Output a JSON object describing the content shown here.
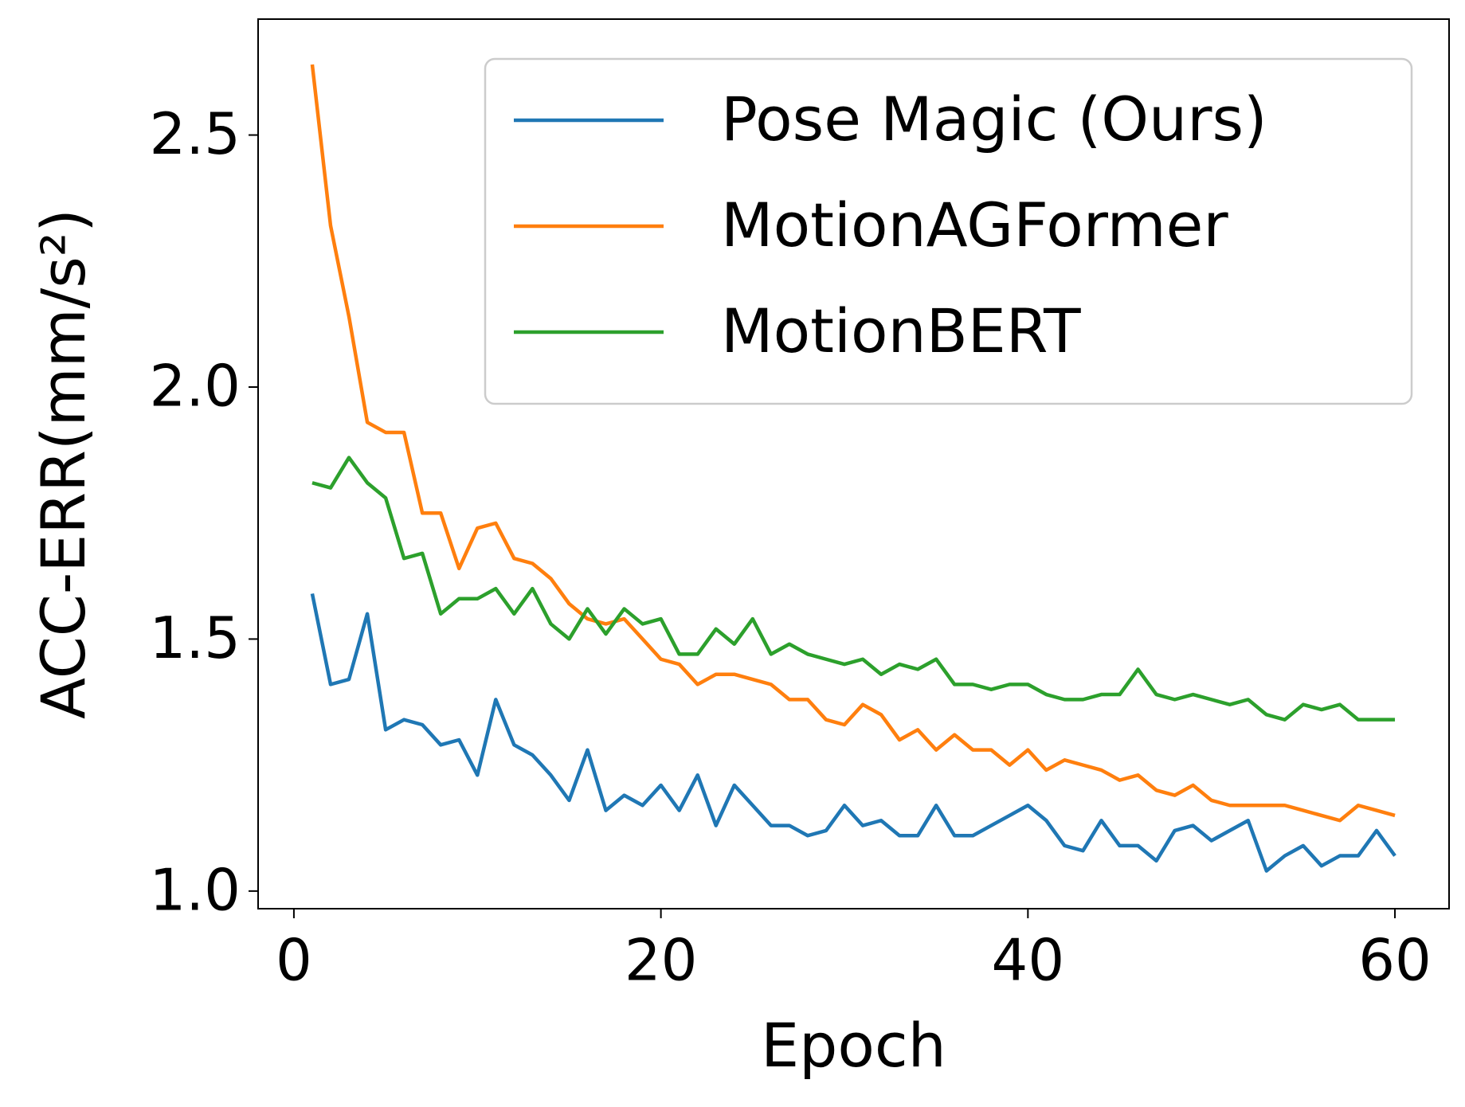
{
  "chart_data": {
    "type": "line",
    "xlabel": "Epoch",
    "ylabel": "ACC-ERR(mm/s²)",
    "x": [
      1,
      2,
      3,
      4,
      5,
      6,
      7,
      8,
      9,
      10,
      11,
      12,
      13,
      14,
      15,
      16,
      17,
      18,
      19,
      20,
      21,
      22,
      23,
      24,
      25,
      26,
      27,
      28,
      29,
      30,
      31,
      32,
      33,
      34,
      35,
      36,
      37,
      38,
      39,
      40,
      41,
      42,
      43,
      44,
      45,
      46,
      47,
      48,
      49,
      50,
      51,
      52,
      53,
      54,
      55,
      56,
      57,
      58,
      59,
      60
    ],
    "series": [
      {
        "name": "Pose Magic (Ours)",
        "color": "#1f77b4",
        "values": [
          1.59,
          1.41,
          1.42,
          1.55,
          1.32,
          1.34,
          1.33,
          1.29,
          1.3,
          1.23,
          1.38,
          1.29,
          1.27,
          1.23,
          1.18,
          1.28,
          1.16,
          1.19,
          1.17,
          1.21,
          1.16,
          1.23,
          1.13,
          1.21,
          1.17,
          1.13,
          1.13,
          1.11,
          1.12,
          1.17,
          1.13,
          1.14,
          1.11,
          1.11,
          1.17,
          1.11,
          1.11,
          1.13,
          1.15,
          1.17,
          1.14,
          1.09,
          1.08,
          1.14,
          1.09,
          1.09,
          1.06,
          1.12,
          1.13,
          1.1,
          1.12,
          1.14,
          1.04,
          1.07,
          1.09,
          1.05,
          1.07,
          1.07,
          1.12,
          1.07
        ]
      },
      {
        "name": "MotionAGFormer",
        "color": "#ff7f0e",
        "values": [
          2.64,
          2.32,
          2.14,
          1.93,
          1.91,
          1.91,
          1.75,
          1.75,
          1.64,
          1.72,
          1.73,
          1.66,
          1.65,
          1.62,
          1.57,
          1.54,
          1.53,
          1.54,
          1.5,
          1.46,
          1.45,
          1.41,
          1.43,
          1.43,
          1.42,
          1.41,
          1.38,
          1.38,
          1.34,
          1.33,
          1.37,
          1.35,
          1.3,
          1.32,
          1.28,
          1.31,
          1.28,
          1.28,
          1.25,
          1.28,
          1.24,
          1.26,
          1.25,
          1.24,
          1.22,
          1.23,
          1.2,
          1.19,
          1.21,
          1.18,
          1.17,
          1.17,
          1.17,
          1.17,
          1.16,
          1.15,
          1.14,
          1.17,
          1.16,
          1.15
        ]
      },
      {
        "name": "MotionBERT",
        "color": "#2ca02c",
        "values": [
          1.81,
          1.8,
          1.86,
          1.81,
          1.78,
          1.66,
          1.67,
          1.55,
          1.58,
          1.58,
          1.6,
          1.55,
          1.6,
          1.53,
          1.5,
          1.56,
          1.51,
          1.56,
          1.53,
          1.54,
          1.47,
          1.47,
          1.52,
          1.49,
          1.54,
          1.47,
          1.49,
          1.47,
          1.46,
          1.45,
          1.46,
          1.43,
          1.45,
          1.44,
          1.46,
          1.41,
          1.41,
          1.4,
          1.41,
          1.41,
          1.39,
          1.38,
          1.38,
          1.39,
          1.39,
          1.44,
          1.39,
          1.38,
          1.39,
          1.38,
          1.37,
          1.38,
          1.35,
          1.34,
          1.37,
          1.36,
          1.37,
          1.34,
          1.34,
          1.34
        ]
      }
    ],
    "xlim": [
      -1.95,
      62.95
    ],
    "xticks": [
      0,
      20,
      40,
      60
    ],
    "ylim": [
      0.965,
      2.73
    ],
    "yticks": [
      {
        "value": 1.0,
        "label": "1.0"
      },
      1.5,
      {
        "value": 2.0,
        "label": "2.0"
      },
      2.5
    ],
    "legend": "upper right",
    "grid": false
  }
}
